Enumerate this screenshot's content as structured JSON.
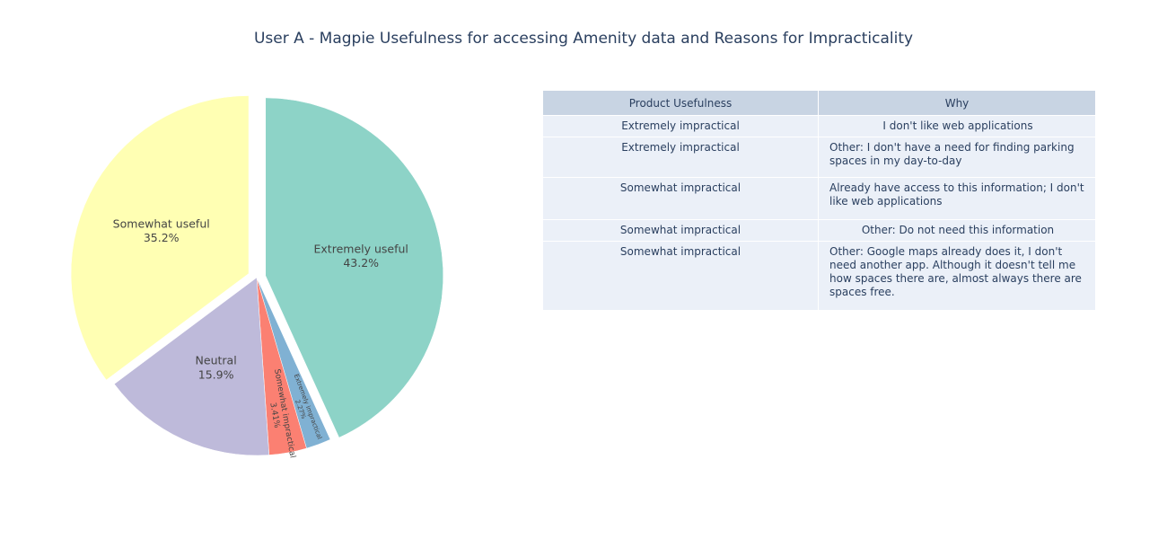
{
  "chart_data": [
    {
      "type": "pie",
      "title": "User A - Magpie Usefulness for accessing Amenity data and Reasons for Impracticality",
      "slices": [
        {
          "label": "Extremely useful",
          "percent": 43.2,
          "percent_text": "43.2%",
          "color": "#8dd3c7",
          "pulled": true
        },
        {
          "label": "Extremely impractical",
          "percent": 2.27,
          "percent_text": "2.27%",
          "color": "#80b1d3",
          "pulled": false
        },
        {
          "label": "Somewhat impractical",
          "percent": 3.41,
          "percent_text": "3.41%",
          "color": "#fb8072",
          "pulled": false
        },
        {
          "label": "Neutral",
          "percent": 15.9,
          "percent_text": "15.9%",
          "color": "#bebada",
          "pulled": false
        },
        {
          "label": "Somewhat useful",
          "percent": 35.2,
          "percent_text": "35.2%",
          "color": "#ffffb3",
          "pulled": true
        }
      ]
    },
    {
      "type": "table",
      "header": [
        "Product Usefulness",
        "Why"
      ],
      "rows": [
        [
          "Extremely impractical",
          "I don't like web applications"
        ],
        [
          "Extremely impractical",
          "Other: I don't have a need for finding parking spaces in my day-to-day"
        ],
        [
          "Somewhat impractical",
          "Already have access to this information; I don't like web applications"
        ],
        [
          "Somewhat impractical",
          "Other: Do not need this information"
        ],
        [
          "Somewhat impractical",
          "Other: Google maps already does it, I don't need another app. Although it doesn't tell me how spaces there are, almost always there are spaces free."
        ]
      ],
      "header_color": "#c8d4e3",
      "cell_color": "#ebf0f8"
    }
  ]
}
